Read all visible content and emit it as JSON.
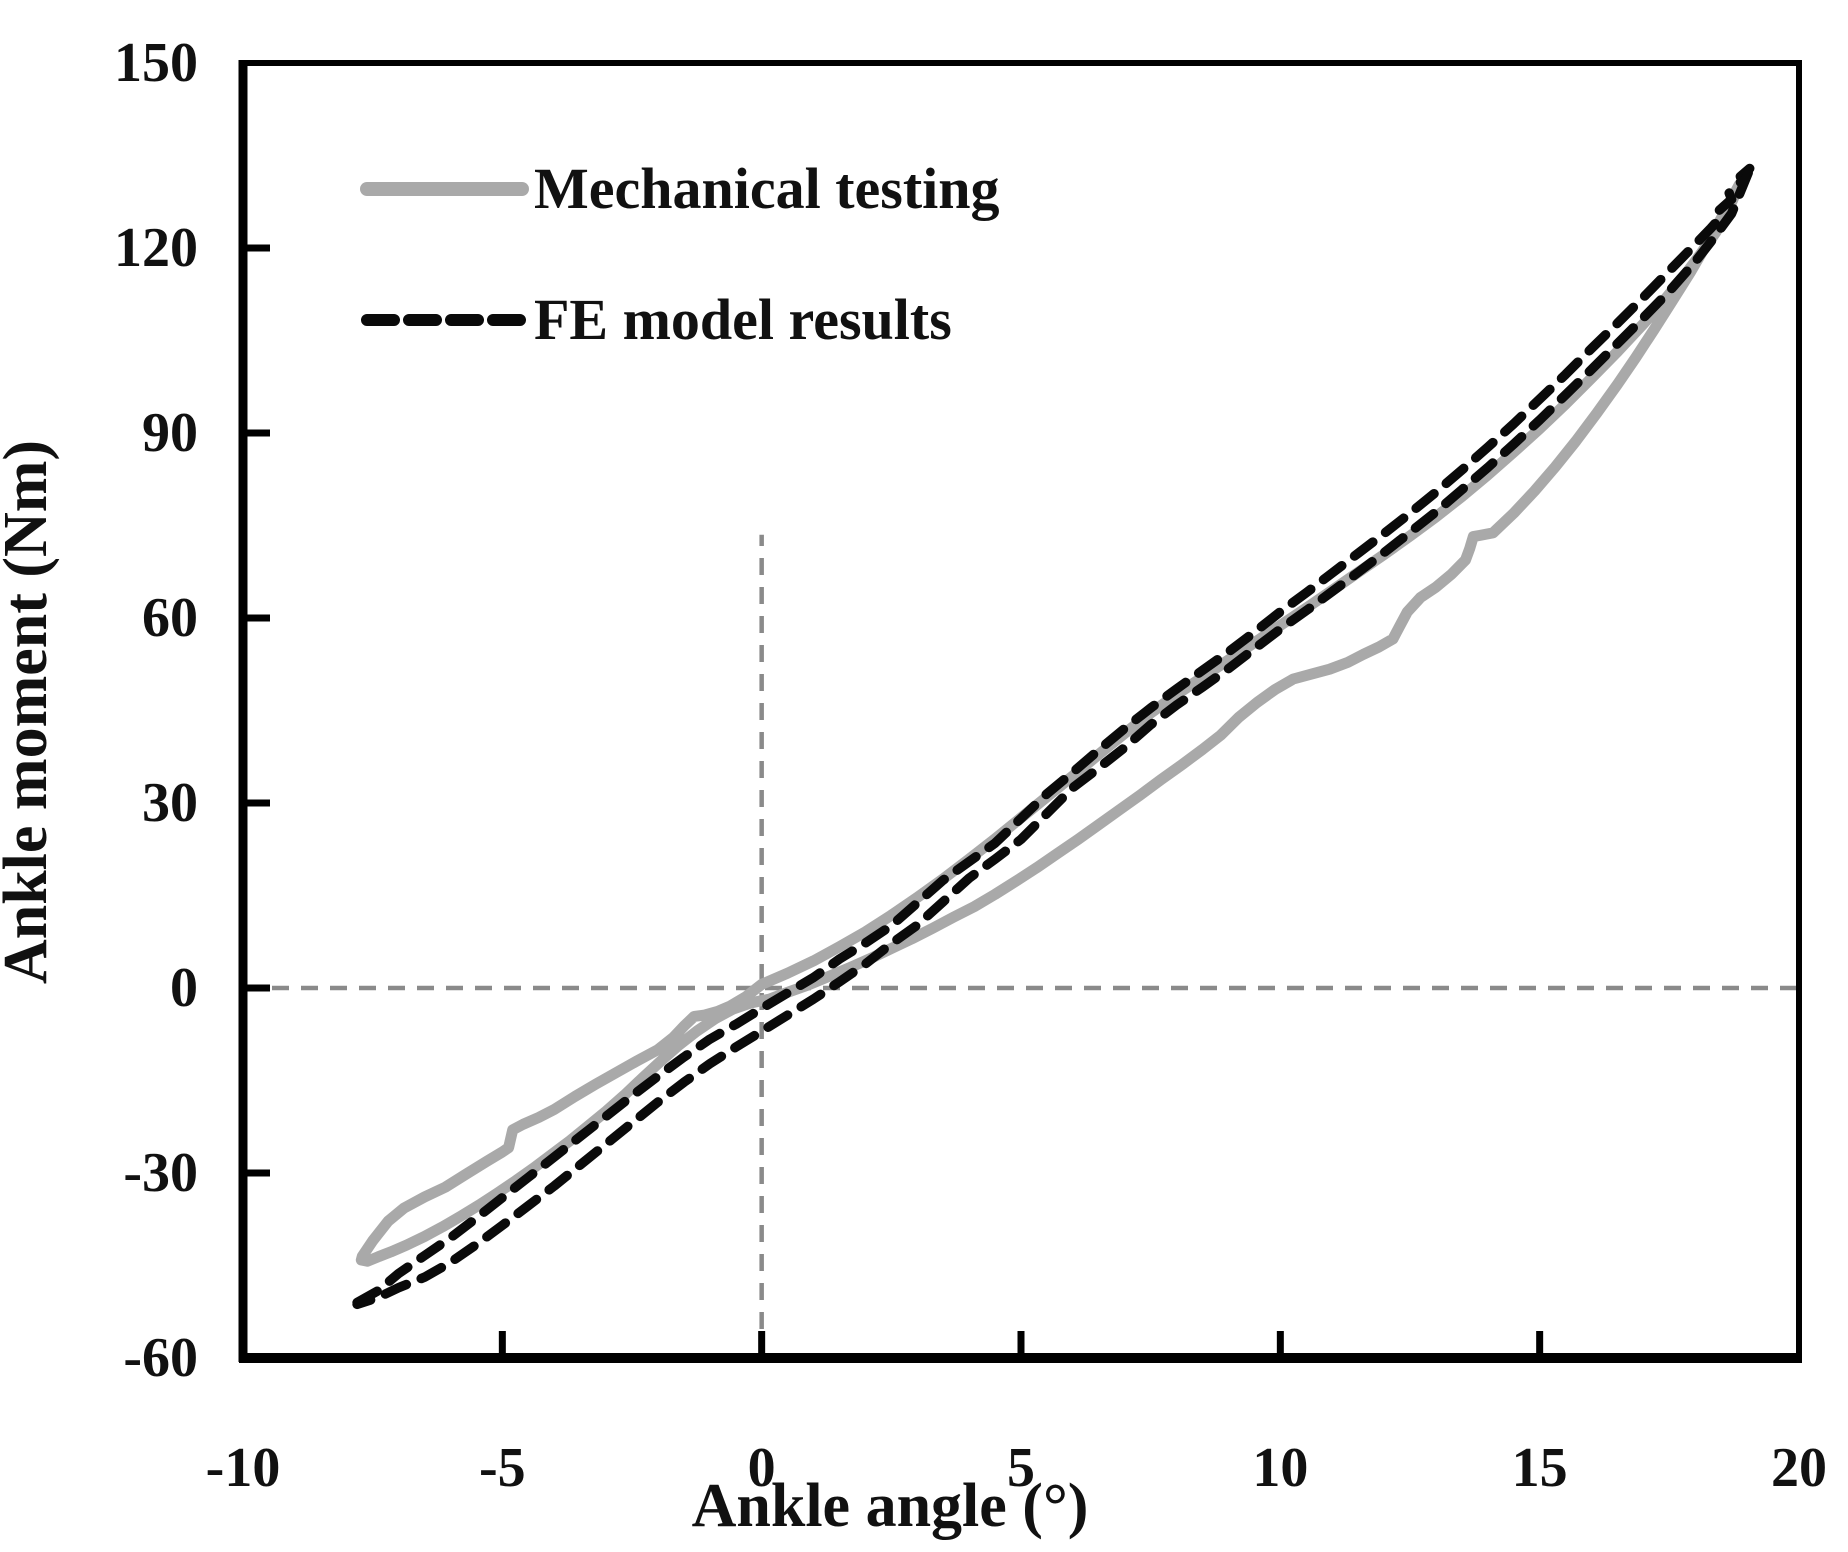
{
  "chart_data": {
    "type": "line",
    "title": "",
    "xlabel": "Ankle angle (°)",
    "ylabel": "Ankle moment (Nm)",
    "xlim": [
      -10,
      20
    ],
    "ylim": [
      -60,
      150
    ],
    "grid": false,
    "legend_position": "top-left",
    "xticks": {
      "values": [
        -10,
        -5,
        0,
        5,
        10,
        15,
        20
      ],
      "labels": [
        "-10",
        "-5",
        "0",
        "5",
        "10",
        "15",
        "20"
      ]
    },
    "yticks": {
      "values": [
        -60,
        -30,
        0,
        30,
        60,
        90,
        120,
        150
      ],
      "labels": [
        "-60",
        "-30",
        "0",
        "30",
        "60",
        "90",
        "120",
        "150"
      ]
    },
    "reference_lines": [
      {
        "axis": "horizontal",
        "moment": 0,
        "from_angle": -10,
        "to_angle": 20
      },
      {
        "axis": "vertical",
        "angle": 0,
        "from_moment": -60,
        "to_moment": 73.5
      }
    ],
    "colors": {
      "mechanical_gray": "#a9a9a9",
      "fe_black": "#0a0a0a",
      "reference_dash_gray": "#8a8a8a",
      "axis_black": "#000000"
    },
    "series": [
      {
        "name": "Mechanical testing",
        "style": "solid",
        "color": "#a9a9a9",
        "line_width": 11,
        "shape": "hysteresis-loop",
        "points_increasing": [
          [
            -7.7,
            -43.5
          ],
          [
            -7.5,
            -41.0
          ],
          [
            -7.2,
            -37.8
          ],
          [
            -6.9,
            -35.7
          ],
          [
            -6.5,
            -33.9
          ],
          [
            -6.1,
            -32.3
          ],
          [
            -5.7,
            -30.2
          ],
          [
            -5.3,
            -28.1
          ],
          [
            -5.0,
            -26.6
          ],
          [
            -4.88,
            -25.9
          ],
          [
            -4.8,
            -23.0
          ],
          [
            -4.6,
            -22.1
          ],
          [
            -4.3,
            -21.0
          ],
          [
            -4.0,
            -19.7
          ],
          [
            -3.6,
            -17.6
          ],
          [
            -3.2,
            -15.6
          ],
          [
            -2.8,
            -13.7
          ],
          [
            -2.4,
            -11.8
          ],
          [
            -2.0,
            -10.0
          ],
          [
            -1.7,
            -8.0
          ],
          [
            -1.5,
            -6.2
          ],
          [
            -1.3,
            -4.6
          ],
          [
            -1.1,
            -4.4
          ],
          [
            -0.85,
            -3.8
          ],
          [
            -0.6,
            -2.9
          ],
          [
            -0.3,
            -1.4
          ],
          [
            0.0,
            0.6
          ],
          [
            0.5,
            2.4
          ],
          [
            1.0,
            4.4
          ],
          [
            1.5,
            6.7
          ],
          [
            2.0,
            9.1
          ],
          [
            2.5,
            11.8
          ],
          [
            3.0,
            14.7
          ],
          [
            3.5,
            17.7
          ],
          [
            4.0,
            20.9
          ],
          [
            4.5,
            24.2
          ],
          [
            5.0,
            27.6
          ],
          [
            5.5,
            31.0
          ],
          [
            6.0,
            34.4
          ],
          [
            6.5,
            37.9
          ],
          [
            7.0,
            41.3
          ],
          [
            7.5,
            44.6
          ],
          [
            8.0,
            47.6
          ],
          [
            8.5,
            50.4
          ],
          [
            9.0,
            53.2
          ],
          [
            9.5,
            56.0
          ],
          [
            10.0,
            58.8
          ],
          [
            10.5,
            61.6
          ],
          [
            11.0,
            64.5
          ],
          [
            11.5,
            67.4
          ],
          [
            12.0,
            70.3
          ],
          [
            12.5,
            73.3
          ],
          [
            13.0,
            76.4
          ],
          [
            13.5,
            79.7
          ],
          [
            14.0,
            83.2
          ],
          [
            14.5,
            86.9
          ],
          [
            15.0,
            90.7
          ],
          [
            15.5,
            94.7
          ],
          [
            16.0,
            98.9
          ],
          [
            16.5,
            103.2
          ],
          [
            17.0,
            107.7
          ],
          [
            17.4,
            111.5
          ],
          [
            17.8,
            115.6
          ],
          [
            18.1,
            119.0
          ],
          [
            18.4,
            122.6
          ],
          [
            18.65,
            126.4
          ],
          [
            18.85,
            130.3
          ]
        ],
        "points_decreasing": [
          [
            18.85,
            130.3
          ],
          [
            18.65,
            127.2
          ],
          [
            18.45,
            124.0
          ],
          [
            18.2,
            120.3
          ],
          [
            17.9,
            116.0
          ],
          [
            17.55,
            111.3
          ],
          [
            17.2,
            106.7
          ],
          [
            16.85,
            102.2
          ],
          [
            16.5,
            97.9
          ],
          [
            16.1,
            93.2
          ],
          [
            15.7,
            88.7
          ],
          [
            15.3,
            84.5
          ],
          [
            14.9,
            80.6
          ],
          [
            14.5,
            77.0
          ],
          [
            14.1,
            73.8
          ],
          [
            13.85,
            73.4
          ],
          [
            13.72,
            73.2
          ],
          [
            13.65,
            71.2
          ],
          [
            13.57,
            69.4
          ],
          [
            13.3,
            67.1
          ],
          [
            13.0,
            65.0
          ],
          [
            12.7,
            63.3
          ],
          [
            12.45,
            61.0
          ],
          [
            12.32,
            59.0
          ],
          [
            12.17,
            56.6
          ],
          [
            11.9,
            55.3
          ],
          [
            11.6,
            54.1
          ],
          [
            11.3,
            52.8
          ],
          [
            10.95,
            51.7
          ],
          [
            10.6,
            50.9
          ],
          [
            10.25,
            50.1
          ],
          [
            9.9,
            48.4
          ],
          [
            9.55,
            46.3
          ],
          [
            9.2,
            43.9
          ],
          [
            8.85,
            41.0
          ],
          [
            8.5,
            38.7
          ],
          [
            8.1,
            36.2
          ],
          [
            7.7,
            33.8
          ],
          [
            7.3,
            31.3
          ],
          [
            6.9,
            28.9
          ],
          [
            6.5,
            26.5
          ],
          [
            6.1,
            24.1
          ],
          [
            5.7,
            21.8
          ],
          [
            5.3,
            19.5
          ],
          [
            4.9,
            17.3
          ],
          [
            4.5,
            15.2
          ],
          [
            4.1,
            13.2
          ],
          [
            3.7,
            11.5
          ],
          [
            3.3,
            9.7
          ],
          [
            2.9,
            8.0
          ],
          [
            2.5,
            6.4
          ],
          [
            2.1,
            4.8
          ],
          [
            1.7,
            3.3
          ],
          [
            1.3,
            1.9
          ],
          [
            0.9,
            0.5
          ],
          [
            0.5,
            -0.7
          ],
          [
            0.15,
            -1.8
          ],
          [
            -0.2,
            -2.4
          ],
          [
            -0.55,
            -3.4
          ],
          [
            -0.9,
            -5.0
          ],
          [
            -1.25,
            -7.0
          ],
          [
            -1.6,
            -9.3
          ],
          [
            -1.95,
            -11.9
          ],
          [
            -2.3,
            -14.6
          ],
          [
            -2.65,
            -17.4
          ],
          [
            -3.0,
            -20.0
          ],
          [
            -3.35,
            -22.4
          ],
          [
            -3.7,
            -24.8
          ],
          [
            -4.05,
            -27.0
          ],
          [
            -4.4,
            -29.2
          ],
          [
            -4.75,
            -31.3
          ],
          [
            -5.1,
            -33.3
          ],
          [
            -5.45,
            -35.2
          ],
          [
            -5.8,
            -37.0
          ],
          [
            -6.15,
            -38.7
          ],
          [
            -6.5,
            -40.3
          ],
          [
            -6.85,
            -41.7
          ],
          [
            -7.15,
            -42.8
          ],
          [
            -7.4,
            -43.6
          ],
          [
            -7.6,
            -44.3
          ],
          [
            -7.72,
            -44.1
          ],
          [
            -7.7,
            -43.5
          ]
        ]
      },
      {
        "name": "FE model results",
        "style": "dashed",
        "color": "#0a0a0a",
        "line_width": 9.5,
        "dash_pattern": [
          23,
          16
        ],
        "shape": "hysteresis-loop",
        "points_increasing": [
          [
            -7.8,
            -51.0
          ],
          [
            -7.4,
            -49.1
          ],
          [
            -7.0,
            -46.3
          ],
          [
            -6.5,
            -43.4
          ],
          [
            -6.0,
            -40.5
          ],
          [
            -5.5,
            -37.3
          ],
          [
            -5.0,
            -34.0
          ],
          [
            -4.5,
            -30.7
          ],
          [
            -4.0,
            -27.4
          ],
          [
            -3.5,
            -24.1
          ],
          [
            -3.0,
            -20.8
          ],
          [
            -2.5,
            -17.5
          ],
          [
            -2.0,
            -14.3
          ],
          [
            -1.5,
            -11.2
          ],
          [
            -1.0,
            -8.3
          ],
          [
            -0.5,
            -5.9
          ],
          [
            0.0,
            -3.3
          ],
          [
            0.5,
            -0.8
          ],
          [
            1.0,
            1.7
          ],
          [
            1.5,
            4.7
          ],
          [
            2.0,
            7.3
          ],
          [
            2.5,
            10.1
          ],
          [
            3.0,
            13.8
          ],
          [
            3.5,
            17.5
          ],
          [
            4.0,
            20.5
          ],
          [
            4.5,
            23.5
          ],
          [
            5.0,
            27.5
          ],
          [
            5.5,
            31.5
          ],
          [
            6.0,
            35.0
          ],
          [
            6.5,
            38.6
          ],
          [
            7.0,
            42.1
          ],
          [
            7.5,
            45.4
          ],
          [
            8.0,
            48.5
          ],
          [
            8.5,
            51.5
          ],
          [
            9.0,
            54.5
          ],
          [
            9.5,
            57.7
          ],
          [
            10.0,
            61.0
          ],
          [
            10.5,
            64.1
          ],
          [
            11.0,
            67.3
          ],
          [
            11.5,
            70.5
          ],
          [
            12.0,
            73.7
          ],
          [
            12.5,
            77.0
          ],
          [
            13.0,
            80.4
          ],
          [
            13.5,
            84.0
          ],
          [
            14.0,
            87.7
          ],
          [
            14.5,
            91.5
          ],
          [
            15.0,
            95.5
          ],
          [
            15.5,
            99.5
          ],
          [
            16.0,
            103.7
          ],
          [
            16.5,
            107.8
          ],
          [
            17.0,
            112.0
          ],
          [
            17.5,
            116.3
          ],
          [
            18.0,
            120.6
          ],
          [
            18.3,
            123.2
          ],
          [
            18.45,
            124.6
          ],
          [
            18.42,
            125.8
          ],
          [
            18.7,
            127.9
          ],
          [
            18.65,
            129.0
          ],
          [
            18.9,
            130.9
          ],
          [
            18.87,
            131.6
          ],
          [
            19.05,
            132.9
          ]
        ],
        "points_decreasing": [
          [
            19.02,
            132.2
          ],
          [
            18.7,
            125.6
          ],
          [
            18.3,
            121.0
          ],
          [
            18.0,
            117.8
          ],
          [
            17.5,
            113.0
          ],
          [
            17.0,
            108.7
          ],
          [
            16.5,
            104.5
          ],
          [
            16.0,
            100.3
          ],
          [
            15.5,
            96.2
          ],
          [
            15.0,
            92.1
          ],
          [
            14.5,
            88.2
          ],
          [
            14.0,
            84.4
          ],
          [
            13.5,
            80.8
          ],
          [
            13.0,
            77.2
          ],
          [
            12.5,
            73.9
          ],
          [
            12.0,
            70.6
          ],
          [
            11.5,
            67.4
          ],
          [
            11.0,
            64.3
          ],
          [
            10.5,
            61.2
          ],
          [
            10.0,
            58.2
          ],
          [
            9.5,
            55.0
          ],
          [
            9.0,
            51.8
          ],
          [
            8.5,
            48.8
          ],
          [
            8.0,
            45.9
          ],
          [
            7.5,
            42.7
          ],
          [
            7.0,
            39.0
          ],
          [
            6.5,
            35.7
          ],
          [
            6.0,
            32.5
          ],
          [
            5.5,
            28.3
          ],
          [
            5.0,
            24.1
          ],
          [
            4.5,
            20.9
          ],
          [
            4.0,
            17.8
          ],
          [
            3.5,
            14.0
          ],
          [
            3.0,
            10.2
          ],
          [
            2.5,
            7.2
          ],
          [
            2.0,
            3.9
          ],
          [
            1.5,
            1.0
          ],
          [
            1.0,
            -1.8
          ],
          [
            0.5,
            -4.4
          ],
          [
            0.0,
            -7.0
          ],
          [
            -0.5,
            -9.6
          ],
          [
            -1.0,
            -12.3
          ],
          [
            -1.5,
            -15.3
          ],
          [
            -2.0,
            -18.5
          ],
          [
            -2.5,
            -21.9
          ],
          [
            -3.0,
            -25.3
          ],
          [
            -3.5,
            -28.7
          ],
          [
            -4.0,
            -32.1
          ],
          [
            -4.5,
            -35.3
          ],
          [
            -5.0,
            -38.5
          ],
          [
            -5.5,
            -41.6
          ],
          [
            -6.0,
            -44.5
          ],
          [
            -6.5,
            -46.9
          ],
          [
            -7.0,
            -48.6
          ],
          [
            -7.4,
            -50.2
          ],
          [
            -7.8,
            -51.3
          ]
        ]
      }
    ]
  },
  "legend": {
    "entries": [
      {
        "label": "Mechanical testing",
        "swatch": "gray-solid-line"
      },
      {
        "label": "FE model results",
        "swatch": "black-dashed-line"
      }
    ]
  }
}
